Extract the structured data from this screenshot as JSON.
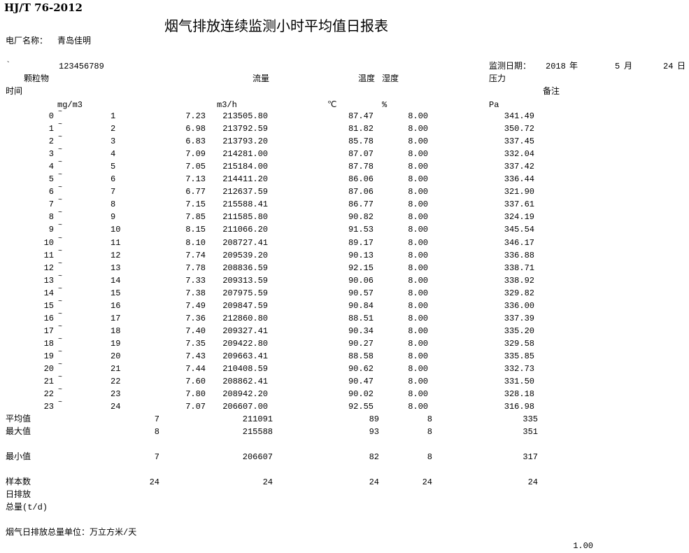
{
  "header": {
    "standard": "HJ/T 76-2012",
    "title": "烟气排放连续监测小时平均值日报表",
    "plant_label": "电厂名称：",
    "plant_name": "青岛佳明",
    "mark": "`",
    "code": "123456789",
    "date_label": "监测日期：",
    "year": "2018",
    "year_unit": "年",
    "month": "5",
    "month_unit": "月",
    "day": "24",
    "day_unit": "日"
  },
  "columns": {
    "particulate": "颗粒物",
    "flow": "流量",
    "temperature": "温度",
    "humidity": "湿度",
    "pressure": "压力",
    "time": "时间",
    "remark": "备注",
    "unit_particulate": "mg/m3",
    "unit_flow": "m3/h",
    "unit_temperature": "℃",
    "unit_humidity": "%",
    "unit_pressure": "Pa"
  },
  "rows": [
    {
      "from": "0",
      "to": "1",
      "particulate": "7.23",
      "flow": "213505.80",
      "temperature": "87.47",
      "humidity": "8.00",
      "pressure": "341.49"
    },
    {
      "from": "1",
      "to": "2",
      "particulate": "6.98",
      "flow": "213792.59",
      "temperature": "81.82",
      "humidity": "8.00",
      "pressure": "350.72"
    },
    {
      "from": "2",
      "to": "3",
      "particulate": "6.83",
      "flow": "213793.20",
      "temperature": "85.78",
      "humidity": "8.00",
      "pressure": "337.45"
    },
    {
      "from": "3",
      "to": "4",
      "particulate": "7.09",
      "flow": "214281.00",
      "temperature": "87.07",
      "humidity": "8.00",
      "pressure": "332.04"
    },
    {
      "from": "4",
      "to": "5",
      "particulate": "7.05",
      "flow": "215184.00",
      "temperature": "87.78",
      "humidity": "8.00",
      "pressure": "337.42"
    },
    {
      "from": "5",
      "to": "6",
      "particulate": "7.13",
      "flow": "214411.20",
      "temperature": "86.06",
      "humidity": "8.00",
      "pressure": "336.44"
    },
    {
      "from": "6",
      "to": "7",
      "particulate": "6.77",
      "flow": "212637.59",
      "temperature": "87.06",
      "humidity": "8.00",
      "pressure": "321.90"
    },
    {
      "from": "7",
      "to": "8",
      "particulate": "7.15",
      "flow": "215588.41",
      "temperature": "86.77",
      "humidity": "8.00",
      "pressure": "337.61"
    },
    {
      "from": "8",
      "to": "9",
      "particulate": "7.85",
      "flow": "211585.80",
      "temperature": "90.82",
      "humidity": "8.00",
      "pressure": "324.19"
    },
    {
      "from": "9",
      "to": "10",
      "particulate": "8.15",
      "flow": "211066.20",
      "temperature": "91.53",
      "humidity": "8.00",
      "pressure": "345.54"
    },
    {
      "from": "10",
      "to": "11",
      "particulate": "8.10",
      "flow": "208727.41",
      "temperature": "89.17",
      "humidity": "8.00",
      "pressure": "346.17"
    },
    {
      "from": "11",
      "to": "12",
      "particulate": "7.74",
      "flow": "209539.20",
      "temperature": "90.13",
      "humidity": "8.00",
      "pressure": "336.88"
    },
    {
      "from": "12",
      "to": "13",
      "particulate": "7.78",
      "flow": "208836.59",
      "temperature": "92.15",
      "humidity": "8.00",
      "pressure": "338.71"
    },
    {
      "from": "13",
      "to": "14",
      "particulate": "7.33",
      "flow": "209313.59",
      "temperature": "90.06",
      "humidity": "8.00",
      "pressure": "338.92"
    },
    {
      "from": "14",
      "to": "15",
      "particulate": "7.38",
      "flow": "207975.59",
      "temperature": "90.57",
      "humidity": "8.00",
      "pressure": "329.82"
    },
    {
      "from": "15",
      "to": "16",
      "particulate": "7.49",
      "flow": "209847.59",
      "temperature": "90.84",
      "humidity": "8.00",
      "pressure": "336.00"
    },
    {
      "from": "16",
      "to": "17",
      "particulate": "7.36",
      "flow": "212860.80",
      "temperature": "88.51",
      "humidity": "8.00",
      "pressure": "337.39"
    },
    {
      "from": "17",
      "to": "18",
      "particulate": "7.40",
      "flow": "209327.41",
      "temperature": "90.34",
      "humidity": "8.00",
      "pressure": "335.20"
    },
    {
      "from": "18",
      "to": "19",
      "particulate": "7.35",
      "flow": "209422.80",
      "temperature": "90.27",
      "humidity": "8.00",
      "pressure": "329.58"
    },
    {
      "from": "19",
      "to": "20",
      "particulate": "7.43",
      "flow": "209663.41",
      "temperature": "88.58",
      "humidity": "8.00",
      "pressure": "335.85"
    },
    {
      "from": "20",
      "to": "21",
      "particulate": "7.44",
      "flow": "210408.59",
      "temperature": "90.62",
      "humidity": "8.00",
      "pressure": "332.73"
    },
    {
      "from": "21",
      "to": "22",
      "particulate": "7.60",
      "flow": "208862.41",
      "temperature": "90.47",
      "humidity": "8.00",
      "pressure": "331.50"
    },
    {
      "from": "22",
      "to": "23",
      "particulate": "7.80",
      "flow": "208942.20",
      "temperature": "90.02",
      "humidity": "8.00",
      "pressure": "328.18"
    },
    {
      "from": "23",
      "to": "24",
      "particulate": "7.07",
      "flow": "206607.00",
      "temperature": "92.55",
      "humidity": "8.00",
      "pressure": "316.98"
    }
  ],
  "tilde": "~",
  "summary": {
    "average": {
      "label": "平均值",
      "particulate": "7",
      "flow": "211091",
      "temperature": "89",
      "humidity": "8",
      "pressure": "335"
    },
    "max": {
      "label": "最大值",
      "particulate": "8",
      "flow": "215588",
      "temperature": "93",
      "humidity": "8",
      "pressure": "351"
    },
    "min": {
      "label": "最小值",
      "particulate": "7",
      "flow": "206607",
      "temperature": "82",
      "humidity": "8",
      "pressure": "317"
    },
    "samples": {
      "label": "样本数",
      "particulate": "24",
      "flow": "24",
      "temperature": "24",
      "humidity": "24",
      "pressure": "24"
    },
    "daily_label_1": "日排放",
    "daily_label_2": "总量(t/d)"
  },
  "footer": {
    "unit_note": "烟气日排放总量单位：万立方米/天",
    "value": "1.00"
  }
}
